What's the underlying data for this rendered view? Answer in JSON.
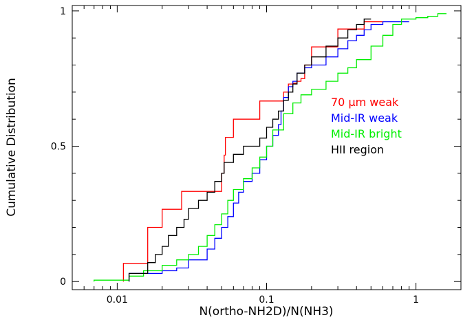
{
  "chart_data": {
    "type": "line",
    "step": true,
    "xscale": "log",
    "xlim": [
      0.005,
      2.0
    ],
    "ylim": [
      -0.03,
      1.02
    ],
    "xlabel": "N(ortho-NH2D)/N(NH3)",
    "ylabel": "Cumulative Distribution",
    "x_ticks": [
      {
        "value": 0.01,
        "label": "0.01"
      },
      {
        "value": 0.1,
        "label": "0.1"
      },
      {
        "value": 1,
        "label": "1"
      }
    ],
    "y_ticks": [
      {
        "value": 0,
        "label": "0"
      },
      {
        "value": 0.5,
        "label": "0.5"
      },
      {
        "value": 1,
        "label": "1"
      }
    ],
    "legend_position": "center-right",
    "series": [
      {
        "name": "70 μm weak",
        "color": "#ff0000",
        "x": [
          0.011,
          0.016,
          0.02,
          0.027,
          0.05,
          0.052,
          0.053,
          0.06,
          0.09,
          0.13,
          0.14,
          0.15,
          0.16,
          0.17,
          0.18,
          0.2,
          0.3,
          0.45,
          0.6
        ],
        "y": [
          0.067,
          0.2,
          0.267,
          0.333,
          0.4,
          0.467,
          0.533,
          0.6,
          0.667,
          0.7,
          0.73,
          0.733,
          0.74,
          0.75,
          0.8,
          0.867,
          0.933,
          0.96,
          0.96
        ]
      },
      {
        "name": "Mid-IR weak",
        "color": "#0000ff",
        "x": [
          0.012,
          0.02,
          0.025,
          0.03,
          0.04,
          0.045,
          0.05,
          0.055,
          0.06,
          0.065,
          0.07,
          0.08,
          0.09,
          0.1,
          0.11,
          0.12,
          0.125,
          0.13,
          0.14,
          0.15,
          0.16,
          0.18,
          0.2,
          0.22,
          0.25,
          0.3,
          0.35,
          0.4,
          0.45,
          0.5,
          0.6,
          0.7,
          0.9
        ],
        "y": [
          0.03,
          0.04,
          0.05,
          0.08,
          0.12,
          0.16,
          0.2,
          0.24,
          0.29,
          0.33,
          0.37,
          0.4,
          0.45,
          0.5,
          0.54,
          0.58,
          0.63,
          0.68,
          0.72,
          0.74,
          0.77,
          0.79,
          0.8,
          0.8,
          0.83,
          0.86,
          0.89,
          0.91,
          0.93,
          0.95,
          0.96,
          0.96,
          0.96
        ]
      },
      {
        "name": "Mid-IR bright",
        "color": "#00ee00",
        "x": [
          0.007,
          0.012,
          0.015,
          0.02,
          0.025,
          0.03,
          0.035,
          0.04,
          0.045,
          0.05,
          0.055,
          0.06,
          0.07,
          0.08,
          0.09,
          0.1,
          0.11,
          0.13,
          0.15,
          0.17,
          0.2,
          0.25,
          0.3,
          0.35,
          0.4,
          0.5,
          0.6,
          0.7,
          0.8,
          1.0,
          1.2,
          1.4,
          1.6
        ],
        "y": [
          0.005,
          0.02,
          0.04,
          0.06,
          0.08,
          0.1,
          0.13,
          0.17,
          0.21,
          0.25,
          0.3,
          0.34,
          0.38,
          0.42,
          0.46,
          0.5,
          0.56,
          0.62,
          0.66,
          0.69,
          0.71,
          0.74,
          0.77,
          0.79,
          0.82,
          0.87,
          0.91,
          0.95,
          0.97,
          0.975,
          0.98,
          0.99,
          0.99
        ]
      },
      {
        "name": "HII region",
        "color": "#000000",
        "x": [
          0.012,
          0.016,
          0.018,
          0.02,
          0.022,
          0.025,
          0.028,
          0.03,
          0.035,
          0.04,
          0.045,
          0.05,
          0.052,
          0.06,
          0.07,
          0.08,
          0.09,
          0.1,
          0.11,
          0.12,
          0.13,
          0.14,
          0.15,
          0.16,
          0.18,
          0.2,
          0.25,
          0.3,
          0.35,
          0.4,
          0.45,
          0.5
        ],
        "y": [
          0.03,
          0.07,
          0.1,
          0.13,
          0.17,
          0.2,
          0.23,
          0.27,
          0.3,
          0.33,
          0.37,
          0.4,
          0.44,
          0.47,
          0.5,
          0.5,
          0.53,
          0.57,
          0.6,
          0.63,
          0.67,
          0.7,
          0.73,
          0.77,
          0.8,
          0.83,
          0.87,
          0.9,
          0.93,
          0.95,
          0.97,
          0.97
        ]
      }
    ]
  }
}
